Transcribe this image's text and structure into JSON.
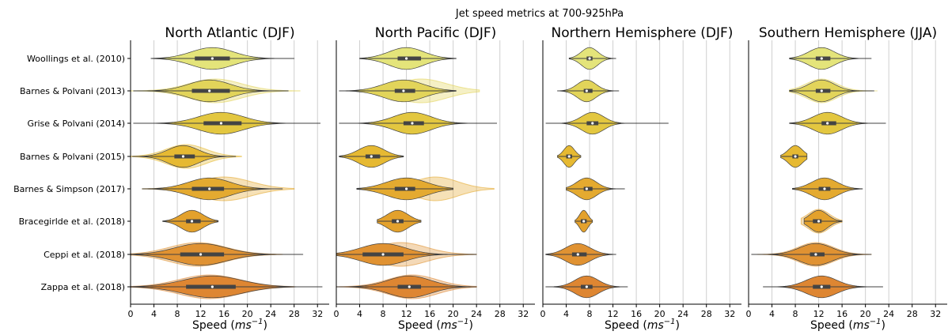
{
  "chart_data": {
    "type": "violin",
    "title": "Jet speed metrics at 700-925hPa",
    "xlabel": "Speed",
    "xlabel_unit": "ms",
    "xlabel_unit_exp": "−1",
    "xlim": [
      0,
      34
    ],
    "xticks": [
      0,
      4,
      8,
      12,
      16,
      20,
      24,
      28,
      32
    ],
    "grid": "vertical",
    "categories": [
      "Woollings et al. (2010)",
      "Barnes & Polvani (2013)",
      "Grise & Polvani (2014)",
      "Barnes & Polvani (2015)",
      "Barnes & Simpson (2017)",
      "Bracegirlde et al. (2018)",
      "Ceppi et al. (2018)",
      "Zappa et al. (2018)"
    ],
    "colors": [
      "#e4e47a",
      "#e2d45a",
      "#e3c740",
      "#e6b932",
      "#e4aa30",
      "#e3a12c",
      "#e09232",
      "#de8632"
    ],
    "panels": [
      {
        "title": "North Atlantic (DJF)",
        "series": [
          {
            "center": 14.0,
            "spread": 3.6,
            "min": 3.5,
            "max": 28.0,
            "q1": 11.0,
            "q3": 17.0
          },
          {
            "center": 13.5,
            "spread": 3.6,
            "min": 0.5,
            "max": 27.0,
            "q1": 10.5,
            "q3": 17.0,
            "ghost_center": 14.5,
            "ghost_spread": 4.5,
            "ghost_min": 0,
            "ghost_max": 29.0
          },
          {
            "center": 15.5,
            "spread": 3.8,
            "min": 0.5,
            "max": 32.5,
            "q1": 12.5,
            "q3": 19.0
          },
          {
            "center": 9.0,
            "spread": 2.6,
            "min": 0.3,
            "max": 18.0,
            "q1": 7.5,
            "q3": 11.0,
            "ghost_center": 9.5,
            "ghost_spread": 3.4,
            "ghost_min": 0,
            "ghost_max": 19.0
          },
          {
            "center": 13.5,
            "spread": 3.6,
            "min": 2.0,
            "max": 26.0,
            "q1": 10.5,
            "q3": 16.0,
            "ghost_center": 16.0,
            "ghost_spread": 4.6,
            "ghost_min": 2,
            "ghost_max": 28.0
          },
          {
            "center": 10.5,
            "spread": 1.9,
            "min": 5.5,
            "max": 15.0,
            "q1": 9.5,
            "q3": 12.0
          },
          {
            "center": 12.0,
            "spread": 4.4,
            "min": 0,
            "max": 29.5,
            "q1": 8.5,
            "q3": 16.0,
            "ghost_center": 11.5,
            "ghost_spread": 4.8,
            "ghost_min": 0,
            "ghost_max": 26.0
          },
          {
            "center": 14.0,
            "spread": 5.0,
            "min": 0,
            "max": 32.8,
            "q1": 9.5,
            "q3": 18.0,
            "ghost_center": 13.5,
            "ghost_spread": 5.2,
            "ghost_min": 0,
            "ghost_max": 28.0
          }
        ]
      },
      {
        "title": "North Pacific (DJF)",
        "series": [
          {
            "center": 12.0,
            "spread": 3.0,
            "min": 4.0,
            "max": 20.5,
            "q1": 10.5,
            "q3": 14.5
          },
          {
            "center": 11.5,
            "spread": 3.4,
            "min": 0.5,
            "max": 20.5,
            "q1": 10.0,
            "q3": 13.5,
            "ghost_center": 14.5,
            "ghost_spread": 4.4,
            "ghost_min": 5,
            "ghost_max": 24.5
          },
          {
            "center": 13.0,
            "spread": 3.2,
            "min": 0.5,
            "max": 27.5,
            "q1": 11.5,
            "q3": 15.0
          },
          {
            "center": 6.0,
            "spread": 2.2,
            "min": 0.5,
            "max": 11.5,
            "q1": 5.0,
            "q3": 7.5
          },
          {
            "center": 12.0,
            "spread": 3.4,
            "min": 3.5,
            "max": 20.0,
            "q1": 10.0,
            "q3": 13.5,
            "ghost_center": 17.0,
            "ghost_spread": 3.8,
            "ghost_min": 4,
            "ghost_max": 27.0
          },
          {
            "center": 10.5,
            "spread": 1.8,
            "min": 7.0,
            "max": 14.5,
            "q1": 9.5,
            "q3": 11.5
          },
          {
            "center": 8.0,
            "spread": 3.8,
            "min": 0,
            "max": 24.0,
            "q1": 4.5,
            "q3": 11.5,
            "ghost_center": 11.0,
            "ghost_spread": 4.4,
            "ghost_min": 0,
            "ghost_max": 24.0
          },
          {
            "center": 12.5,
            "spread": 3.6,
            "min": 0,
            "max": 24.0,
            "q1": 10.5,
            "q3": 14.5,
            "ghost_center": 13.0,
            "ghost_spread": 4.2,
            "ghost_min": 0,
            "ghost_max": 24.0
          }
        ]
      },
      {
        "title": "Northern Hemisphere (DJF)",
        "series": [
          {
            "center": 8.0,
            "spread": 1.4,
            "min": 4.5,
            "max": 12.5,
            "q1": 7.5,
            "q3": 8.5
          },
          {
            "center": 7.5,
            "spread": 1.6,
            "min": 2.5,
            "max": 13.0,
            "q1": 7.0,
            "q3": 8.5
          },
          {
            "center": 8.5,
            "spread": 1.9,
            "min": 0.5,
            "max": 21.5,
            "q1": 7.5,
            "q3": 9.5
          },
          {
            "center": 4.5,
            "spread": 0.9,
            "min": 2.5,
            "max": 6.5,
            "q1": 4.0,
            "q3": 5.0
          },
          {
            "center": 7.5,
            "spread": 1.7,
            "min": 4.0,
            "max": 14.0,
            "q1": 7.0,
            "q3": 8.5
          },
          {
            "center": 7.0,
            "spread": 0.7,
            "min": 5.5,
            "max": 8.5,
            "q1": 6.5,
            "q3": 7.5
          },
          {
            "center": 6.0,
            "spread": 2.1,
            "min": 0.5,
            "max": 12.5,
            "q1": 5.0,
            "q3": 7.5
          },
          {
            "center": 7.5,
            "spread": 2.0,
            "min": 0.5,
            "max": 14.5,
            "q1": 6.5,
            "q3": 8.5
          }
        ]
      },
      {
        "title": "Southern Hemisphere (JJA)",
        "series": [
          {
            "center": 12.5,
            "spread": 2.2,
            "min": 7.0,
            "max": 21.0,
            "q1": 11.5,
            "q3": 14.0
          },
          {
            "center": 12.5,
            "spread": 2.2,
            "min": 7.0,
            "max": 21.5,
            "q1": 11.5,
            "q3": 14.0,
            "ghost_center": 12.5,
            "ghost_spread": 2.6,
            "ghost_min": 7,
            "ghost_max": 22.0
          },
          {
            "center": 13.5,
            "spread": 2.4,
            "min": 7.0,
            "max": 23.5,
            "q1": 12.5,
            "q3": 15.0
          },
          {
            "center": 8.0,
            "spread": 1.2,
            "min": 5.5,
            "max": 10.0,
            "q1": 7.5,
            "q3": 8.5
          },
          {
            "center": 13.0,
            "spread": 2.2,
            "min": 7.5,
            "max": 19.5,
            "q1": 12.0,
            "q3": 14.0
          },
          {
            "center": 12.0,
            "spread": 1.5,
            "min": 9.5,
            "max": 16.0,
            "q1": 11.0,
            "q3": 12.5,
            "ghost_center": 12.0,
            "ghost_spread": 1.8,
            "ghost_min": 9,
            "ghost_max": 16.0
          },
          {
            "center": 11.5,
            "spread": 2.8,
            "min": 0.5,
            "max": 21.0,
            "q1": 10.5,
            "q3": 13.0,
            "ghost_center": 11.5,
            "ghost_spread": 3.0,
            "ghost_min": 1,
            "ghost_max": 21.0
          },
          {
            "center": 12.5,
            "spread": 2.6,
            "min": 2.5,
            "max": 23.0,
            "q1": 11.0,
            "q3": 14.0
          }
        ]
      }
    ]
  }
}
